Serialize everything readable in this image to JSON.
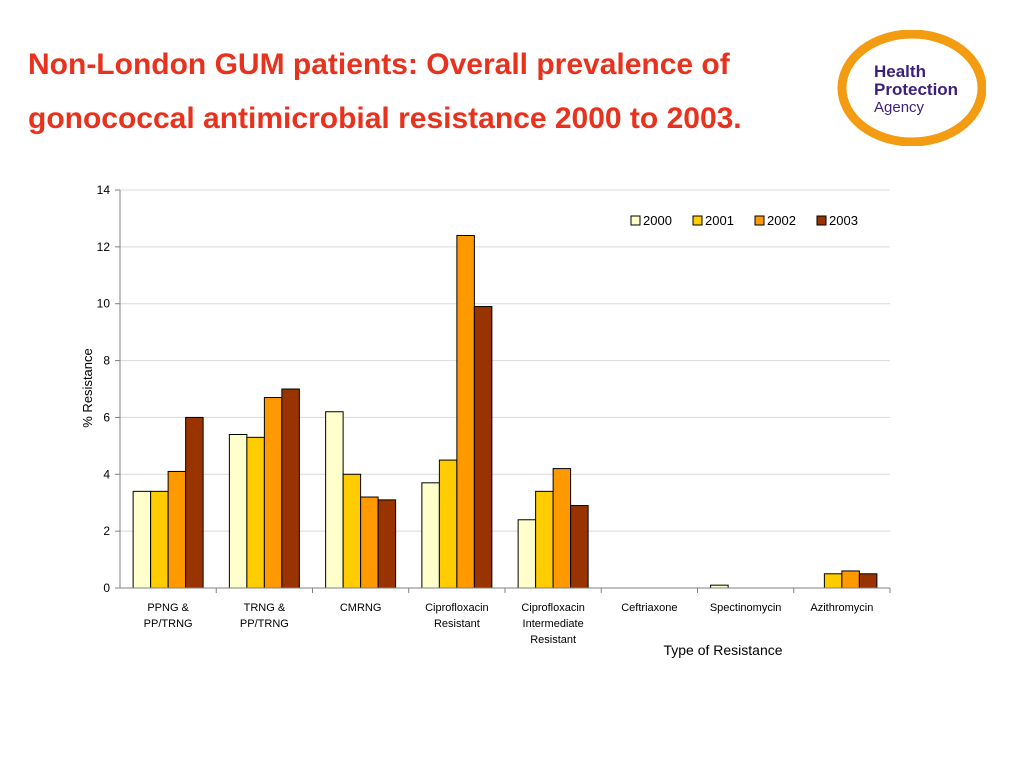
{
  "slide": {
    "title": "Non-London GUM patients: Overall prevalence of gonococcal antimicrobial resistance 2000 to 2003."
  },
  "logo": {
    "line1": "Health",
    "line2": "Protection",
    "line3": "Agency",
    "colors": {
      "ring": "#f39c12",
      "text": "#3b1f7a"
    }
  },
  "chart_data": {
    "type": "bar",
    "title": "",
    "xlabel": "Type of Resistance",
    "ylabel": "% Resistance",
    "ylim": [
      0,
      14
    ],
    "yticks": [
      0,
      2,
      4,
      6,
      8,
      10,
      12,
      14
    ],
    "grid": true,
    "legend_position": "top-right",
    "categories": [
      [
        "PPNG &",
        "PP/TRNG"
      ],
      [
        "TRNG &",
        "PP/TRNG"
      ],
      [
        "CMRNG"
      ],
      [
        "Ciprofloxacin",
        "Resistant"
      ],
      [
        "Ciprofloxacin",
        "Intermediate",
        "Resistant"
      ],
      [
        "Ceftriaxone"
      ],
      [
        "Spectinomycin"
      ],
      [
        "Azithromycin"
      ]
    ],
    "series": [
      {
        "name": "2000",
        "color": "#ffffcc",
        "values": [
          3.4,
          5.4,
          6.2,
          3.7,
          2.4,
          0,
          0.1,
          0
        ]
      },
      {
        "name": "2001",
        "color": "#ffcc00",
        "values": [
          3.4,
          5.3,
          4.0,
          4.5,
          3.4,
          0,
          0,
          0.5
        ]
      },
      {
        "name": "2002",
        "color": "#ff9900",
        "values": [
          4.1,
          6.7,
          3.2,
          12.4,
          4.2,
          0,
          0,
          0.6
        ]
      },
      {
        "name": "2003",
        "color": "#993300",
        "values": [
          6.0,
          7.0,
          3.1,
          9.9,
          2.9,
          0,
          0,
          0.5
        ]
      }
    ]
  }
}
